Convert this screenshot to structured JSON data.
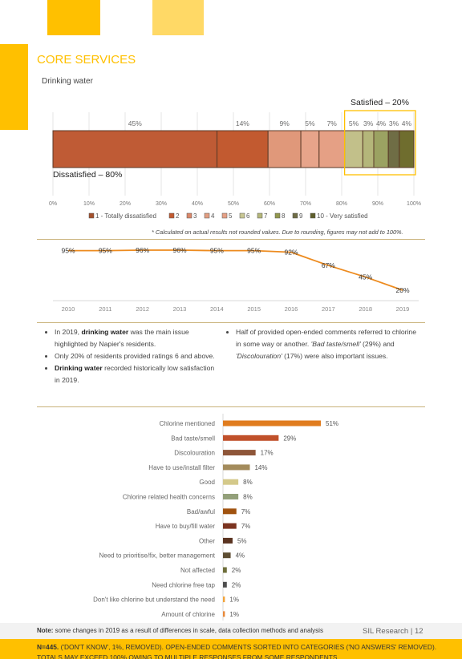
{
  "section_title": "CORE SERVICES",
  "subtitle": "Drinking water",
  "colors": {
    "accent": "#FFC000",
    "accent_light": "#FFD966",
    "trend_line": "#ED8B1F",
    "rule": "#C9B27A"
  },
  "stacked_chart": {
    "satisfied_label": "Satisfied – 20%",
    "dissatisfied_label": "Dissatisfied – 80%",
    "note": "* Calculated on actual results not rounded values. Due to rounding, figures may not add to 100%.",
    "legend_low": "1 - Totally dissatisfied",
    "legend_high": "10 - Very satisfied"
  },
  "bullets_left": [
    {
      "pre": "In 2019, ",
      "bold": "drinking water",
      "post": " was the main issue highlighted by Napier's residents."
    },
    {
      "pre": "Only 20% of residents provided ratings 6 and above.",
      "bold": "",
      "post": ""
    },
    {
      "pre": "",
      "bold": "Drinking water",
      "post": " recorded historically low satisfaction in 2019."
    }
  ],
  "bullet_right": {
    "a": "Half of provided open-ended comments referred to chlorine in some way or another. ",
    "b": "'Bad taste/smell'",
    "c": " (29%) and ",
    "d": "'Discolouration'",
    "e": " (17%) were also important issues."
  },
  "footer": {
    "note_label": "Note:",
    "note_text": " some changes in 2019 as a result of differences in scale, data collection methods and analysis",
    "brand": "SIL Research | 12",
    "n_label": "N=445.",
    "n_text": " ('DON'T KNOW', 1%, REMOVED). OPEN-ENDED COMMENTS SORTED INTO CATEGORIES ('NO ANSWERS' REMOVED). TOTALS MAY EXCEED 100% OWING TO MULTIPLE RESPONSES FROM SOME RESPONDENTS"
  },
  "chart_data": [
    {
      "type": "bar",
      "orientation": "horizontal-stacked",
      "categories": [
        "1",
        "2",
        "3",
        "4",
        "5",
        "6",
        "7",
        "8",
        "9",
        "10"
      ],
      "values": [
        45,
        14,
        9,
        5,
        7,
        5,
        3,
        4,
        3,
        4
      ],
      "data_labels": [
        "45%",
        "14%",
        "9%",
        "5%",
        "7%",
        "5%",
        "3%",
        "4%",
        "3%",
        "4%"
      ],
      "colors": [
        "#BF5B35",
        "#C25A30",
        "#E0987A",
        "#E7A48A",
        "#E5A085",
        "#C2C08A",
        "#B4B67A",
        "#9BA262",
        "#6F6D45",
        "#6F6D2E"
      ],
      "legend": [
        "1 - Totally dissatisfied",
        "2",
        "3",
        "4",
        "5",
        "6",
        "7",
        "8",
        "9",
        "10 - Very satisfied"
      ],
      "legend_colors": [
        "#A4502C",
        "#C25A30",
        "#D9876A",
        "#E29E82",
        "#E5A085",
        "#C8C693",
        "#B4B67A",
        "#93984E",
        "#6F6D45",
        "#5E5E2A"
      ],
      "xticks": [
        "0%",
        "10%",
        "20%",
        "30%",
        "40%",
        "50%",
        "60%",
        "70%",
        "80%",
        "90%",
        "100%"
      ],
      "xlim": [
        0,
        100
      ]
    },
    {
      "type": "line",
      "x": [
        "2010",
        "2011",
        "2012",
        "2013",
        "2014",
        "2015",
        "2016",
        "2017",
        "2018",
        "2019"
      ],
      "values": [
        95,
        95,
        96,
        96,
        95,
        95,
        92,
        67,
        45,
        20
      ],
      "data_labels": [
        "95%",
        "95%",
        "96%",
        "96%",
        "95%",
        "95%",
        "92%",
        "67%",
        "45%",
        "20%"
      ],
      "color": "#ED8B1F"
    },
    {
      "type": "bar",
      "orientation": "horizontal",
      "categories": [
        "Chlorine mentioned",
        "Bad taste/smell",
        "Discolouration",
        "Have to use/install filter",
        "Good",
        "Chlorine related health concerns",
        "Bad/awful",
        "Have to buy/fill water",
        "Other",
        "Need to prioritise/fix, better management",
        "Not affected",
        "Need chlorine free tap",
        "Don't like chlorine but understand the need",
        "Amount of chlorine"
      ],
      "values": [
        51,
        29,
        17,
        14,
        8,
        8,
        7,
        7,
        5,
        4,
        2,
        2,
        1,
        1
      ],
      "data_labels": [
        "51%",
        "29%",
        "17%",
        "14%",
        "8%",
        "8%",
        "7%",
        "7%",
        "5%",
        "4%",
        "2%",
        "2%",
        "1%",
        "1%"
      ],
      "colors": [
        "#E07C1E",
        "#C0502A",
        "#8E5639",
        "#A38B5C",
        "#D4C98A",
        "#93A07A",
        "#A0520F",
        "#7B3420",
        "#5A3320",
        "#5E4E33",
        "#6E6E3A",
        "#4E4E4E",
        "#F2A33A",
        "#E8893A"
      ]
    }
  ]
}
